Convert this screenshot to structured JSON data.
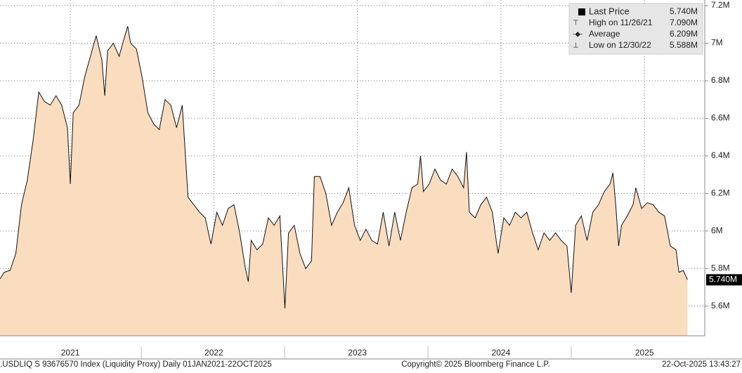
{
  "chart_data": {
    "type": "line",
    "color": "#111111",
    "fill": "#fadcbf",
    "xlim": [
      2021.01,
      2025.92
    ],
    "ylim": [
      5.442,
      7.23
    ],
    "yticks": [
      {
        "value": 5.6,
        "label": "5.6M"
      },
      {
        "value": 5.8,
        "label": "5.8M"
      },
      {
        "value": 6.0,
        "label": "6M"
      },
      {
        "value": 6.2,
        "label": "6.2M"
      },
      {
        "value": 6.4,
        "label": "6.4M"
      },
      {
        "value": 6.6,
        "label": "6.6M"
      },
      {
        "value": 6.8,
        "label": "6.8M"
      },
      {
        "value": 7.0,
        "label": "7M"
      },
      {
        "value": 7.2,
        "label": "7.2M"
      }
    ],
    "xticks": [
      {
        "value": 2021.5,
        "label": "2021"
      },
      {
        "value": 2022.5,
        "label": "2022"
      },
      {
        "value": 2023.5,
        "label": "2023"
      },
      {
        "value": 2024.5,
        "label": "2024"
      },
      {
        "value": 2025.5,
        "label": "2025"
      }
    ],
    "grid": true,
    "series": [
      {
        "name": "Last Price",
        "color": "#111111",
        "x": [
          2021.01,
          2021.04,
          2021.08,
          2021.12,
          2021.16,
          2021.2,
          2021.24,
          2021.28,
          2021.32,
          2021.36,
          2021.4,
          2021.44,
          2021.48,
          2021.5,
          2021.52,
          2021.56,
          2021.6,
          2021.64,
          2021.68,
          2021.72,
          2021.74,
          2021.76,
          2021.8,
          2021.84,
          2021.88,
          2021.9,
          2021.92,
          2021.96,
          2022.0,
          2022.04,
          2022.08,
          2022.12,
          2022.16,
          2022.2,
          2022.24,
          2022.28,
          2022.32,
          2022.36,
          2022.4,
          2022.44,
          2022.48,
          2022.52,
          2022.56,
          2022.6,
          2022.64,
          2022.68,
          2022.72,
          2022.74,
          2022.76,
          2022.8,
          2022.84,
          2022.88,
          2022.92,
          2022.96,
          2022.995,
          2023.02,
          2023.06,
          2023.1,
          2023.14,
          2023.18,
          2023.2,
          2023.24,
          2023.28,
          2023.32,
          2023.36,
          2023.4,
          2023.44,
          2023.48,
          2023.52,
          2023.56,
          2023.6,
          2023.64,
          2023.68,
          2023.72,
          2023.76,
          2023.8,
          2023.84,
          2023.88,
          2023.92,
          2023.94,
          2023.96,
          2024.0,
          2024.04,
          2024.08,
          2024.12,
          2024.16,
          2024.2,
          2024.24,
          2024.26,
          2024.28,
          2024.32,
          2024.36,
          2024.4,
          2024.44,
          2024.48,
          2024.52,
          2024.56,
          2024.6,
          2024.64,
          2024.68,
          2024.72,
          2024.76,
          2024.8,
          2024.84,
          2024.88,
          2024.92,
          2024.96,
          2024.99,
          2025.02,
          2025.06,
          2025.1,
          2025.14,
          2025.18,
          2025.22,
          2025.26,
          2025.28,
          2025.3,
          2025.32,
          2025.34,
          2025.38,
          2025.42,
          2025.44,
          2025.48,
          2025.52,
          2025.56,
          2025.6,
          2025.64,
          2025.68,
          2025.72,
          2025.74,
          2025.77,
          2025.8
        ],
        "values": [
          5.745,
          5.78,
          5.79,
          5.88,
          6.14,
          6.27,
          6.48,
          6.74,
          6.69,
          6.67,
          6.72,
          6.67,
          6.55,
          6.25,
          6.63,
          6.67,
          6.82,
          6.93,
          7.04,
          6.91,
          6.72,
          6.96,
          7.0,
          6.93,
          7.04,
          7.09,
          7.0,
          6.97,
          6.82,
          6.63,
          6.57,
          6.54,
          6.7,
          6.67,
          6.55,
          6.67,
          6.18,
          6.14,
          6.1,
          6.07,
          5.93,
          6.1,
          6.03,
          6.12,
          6.14,
          5.99,
          5.8,
          5.73,
          5.95,
          5.9,
          5.93,
          6.07,
          6.03,
          6.08,
          5.588,
          5.99,
          6.03,
          5.88,
          5.8,
          5.84,
          6.29,
          6.29,
          6.2,
          6.03,
          6.1,
          6.15,
          6.23,
          6.03,
          5.95,
          6.01,
          5.95,
          5.93,
          6.1,
          5.92,
          6.1,
          5.95,
          6.1,
          6.23,
          6.25,
          6.4,
          6.21,
          6.25,
          6.33,
          6.27,
          6.25,
          6.33,
          6.29,
          6.23,
          6.42,
          6.1,
          6.07,
          6.14,
          6.18,
          6.1,
          5.88,
          6.07,
          6.03,
          6.1,
          6.07,
          6.1,
          5.99,
          5.9,
          5.99,
          5.95,
          5.99,
          5.95,
          5.92,
          5.67,
          6.03,
          6.08,
          5.95,
          6.1,
          6.14,
          6.21,
          6.25,
          6.31,
          6.14,
          5.92,
          6.03,
          6.08,
          6.14,
          6.23,
          6.12,
          6.15,
          6.14,
          6.1,
          6.08,
          5.92,
          5.9,
          5.78,
          5.79,
          5.74
        ]
      }
    ],
    "legend": [
      {
        "label": "Last Price",
        "value_label": "5.740M"
      },
      {
        "label": "High on 11/26/21",
        "value_label": "7.090M"
      },
      {
        "label": "Average",
        "value_label": "6.209M"
      },
      {
        "label": "Low on 12/30/22",
        "value_label": "5.588M"
      }
    ],
    "footer": {
      "left": ".USDLIQ S 93676570 Index (Liquidity Proxy) Daily 01JAN2021-22OCT2025",
      "center": "Copyright© 2025 Bloomberg Finance L.P.",
      "right": "22-Oct-2025 13:43:27"
    }
  }
}
